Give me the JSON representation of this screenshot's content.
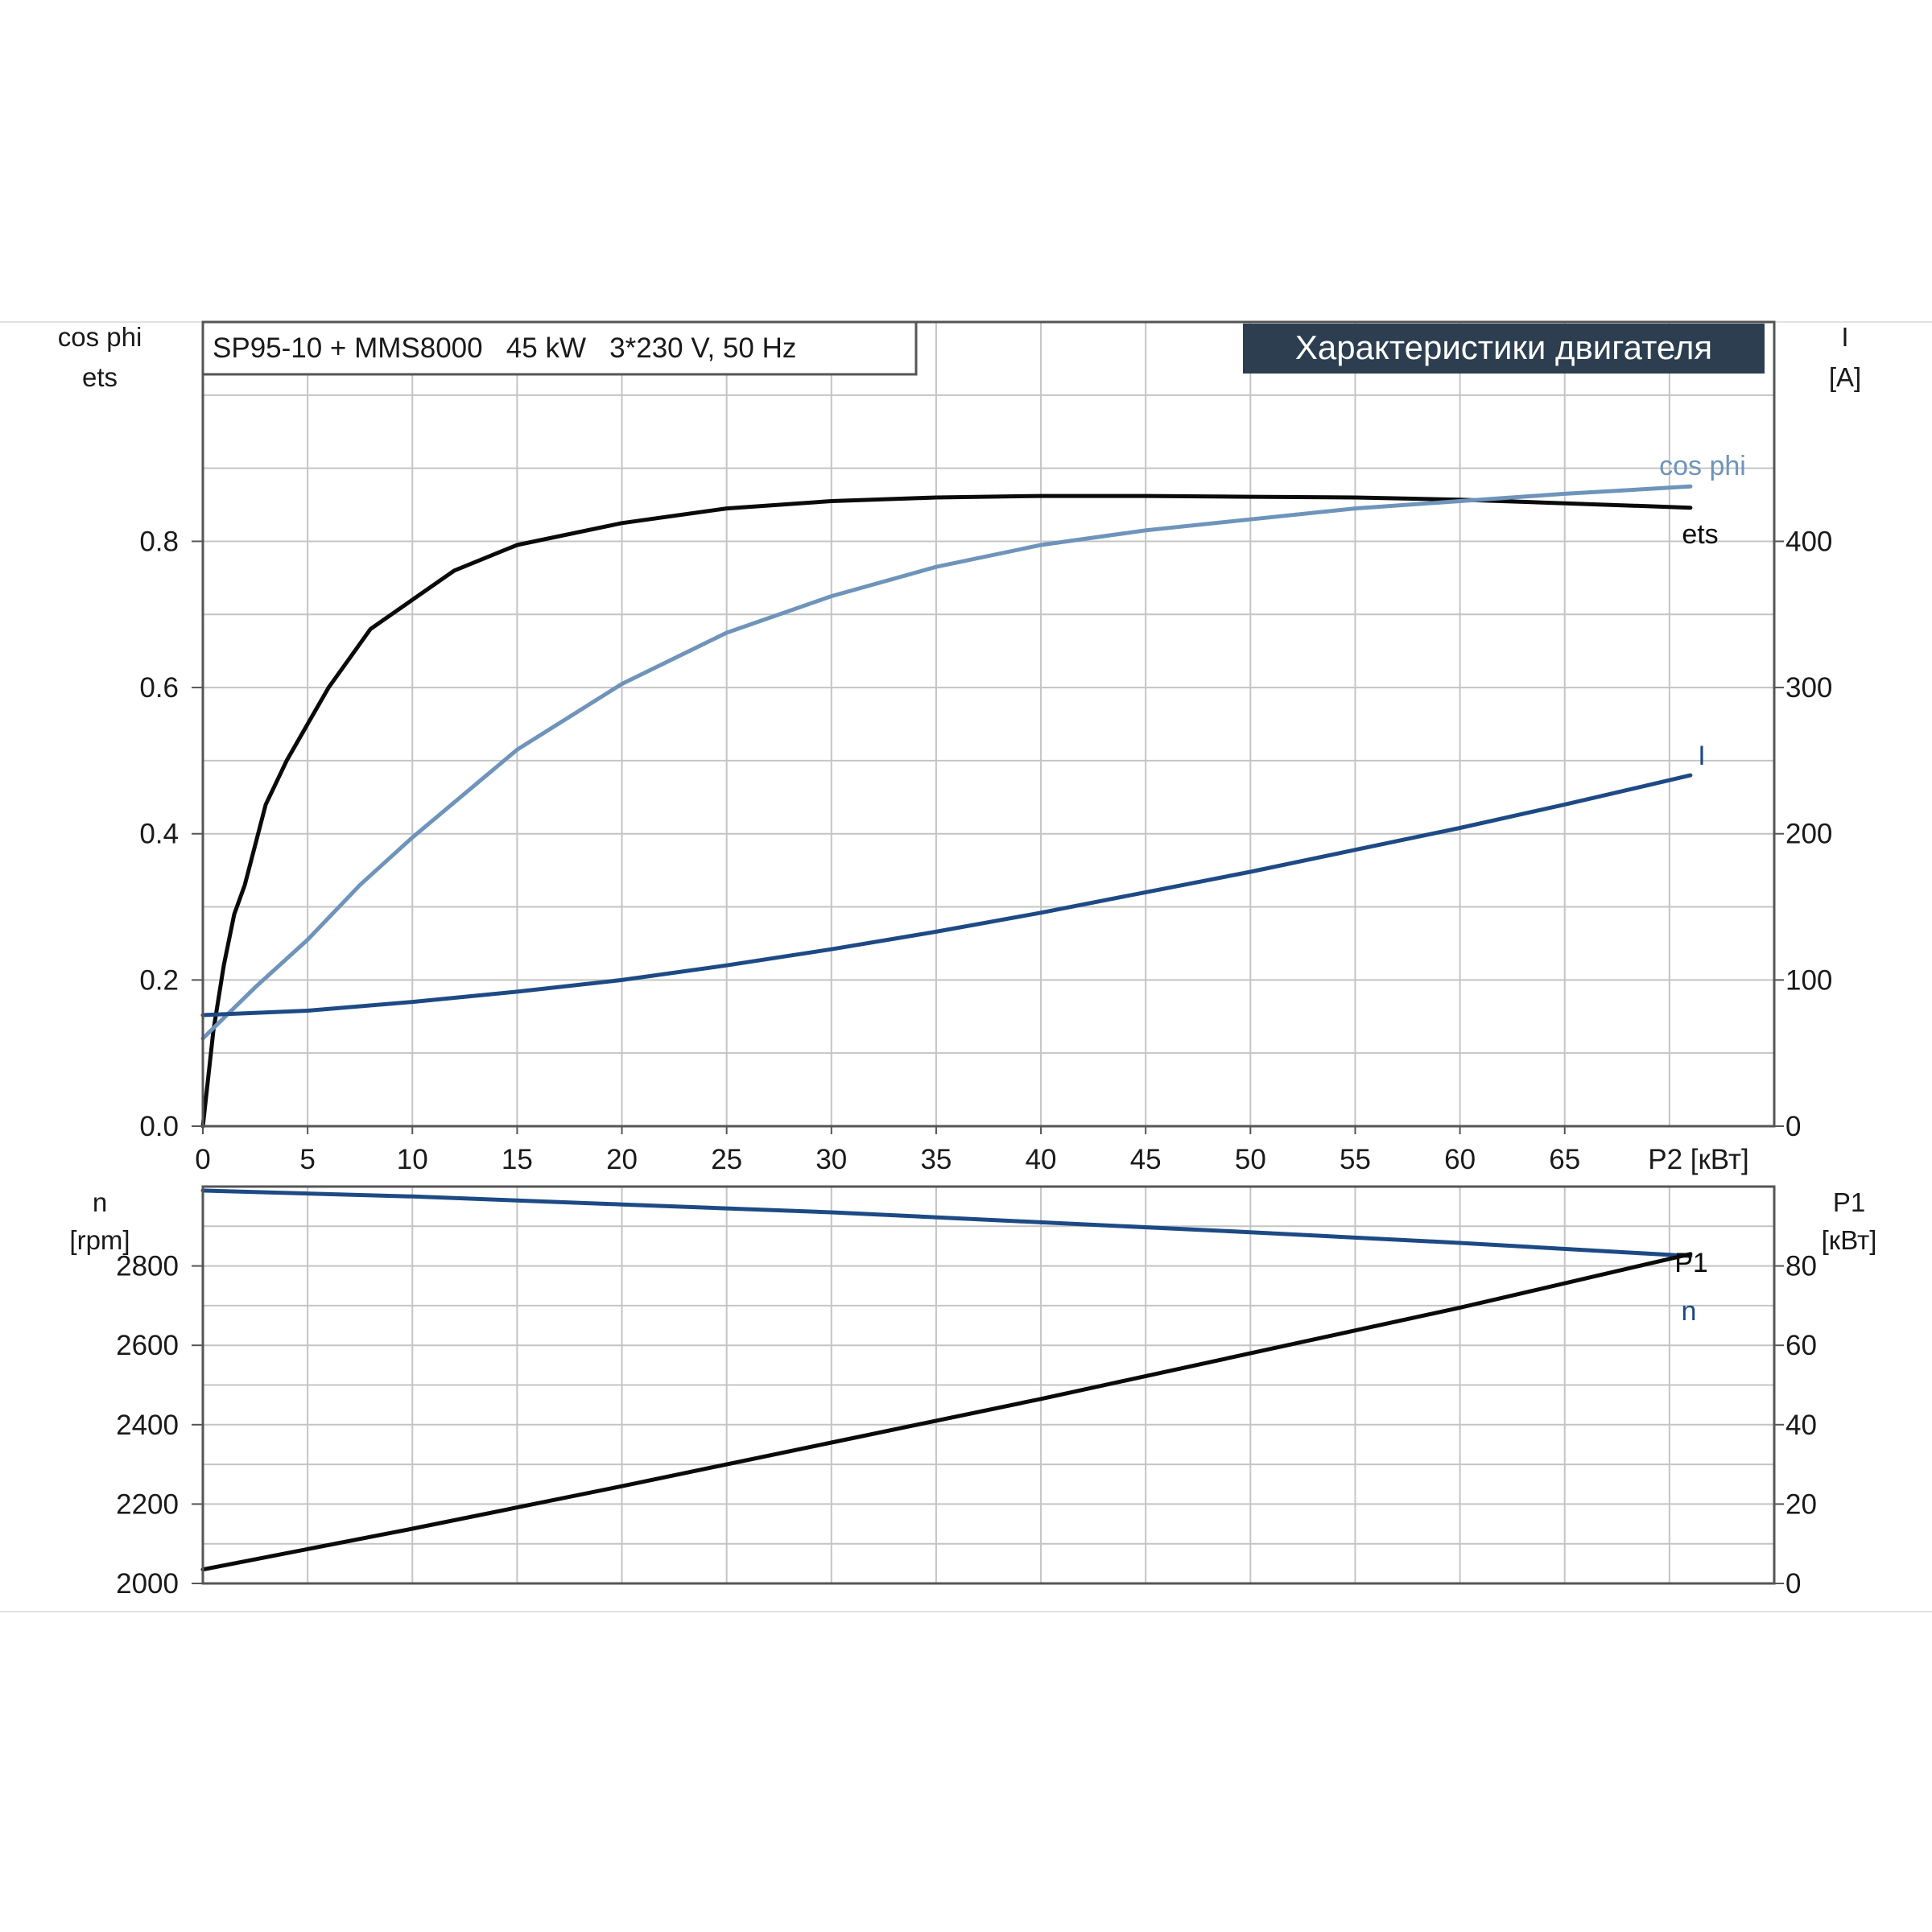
{
  "header": {
    "model_label": "SP95-10 + MMS8000   45 kW   3*230 V, 50 Hz",
    "banner_title": "Характеристики двигателя",
    "banner_bg": "#2c3e50",
    "banner_fg": "#ffffff"
  },
  "chart_data": [
    {
      "type": "line",
      "x_axis": {
        "ticks": [
          "0",
          "5",
          "10",
          "15",
          "20",
          "25",
          "30",
          "35",
          "40",
          "45",
          "50",
          "55",
          "60",
          "65"
        ],
        "label": "P2 [кВт]",
        "range": [
          0,
          75
        ]
      },
      "y_left": {
        "label_lines": [
          "cos phi",
          "ets"
        ],
        "ticks": [
          "0.0",
          "0.2",
          "0.4",
          "0.6",
          "0.8"
        ],
        "range": [
          0,
          1.1
        ]
      },
      "y_right": {
        "label_lines": [
          "I",
          "[A]"
        ],
        "ticks": [
          "0",
          "100",
          "200",
          "300",
          "400"
        ],
        "range": [
          0,
          550
        ]
      },
      "grid": true,
      "series": [
        {
          "name": "ets",
          "axis": "left",
          "color": "#0a0a0a",
          "x": [
            0,
            0.5,
            1,
            1.5,
            2,
            3,
            4,
            5,
            6,
            7,
            8,
            10,
            12,
            15,
            20,
            25,
            30,
            35,
            40,
            45,
            50,
            55,
            60,
            65,
            71
          ],
          "y": [
            0.0,
            0.13,
            0.22,
            0.29,
            0.33,
            0.44,
            0.5,
            0.55,
            0.6,
            0.64,
            0.68,
            0.72,
            0.76,
            0.795,
            0.825,
            0.845,
            0.855,
            0.86,
            0.862,
            0.862,
            0.861,
            0.86,
            0.857,
            0.852,
            0.846
          ]
        },
        {
          "name": "cos phi",
          "axis": "left",
          "color": "#6f94bb",
          "x": [
            0,
            2.5,
            5,
            7.5,
            10,
            15,
            20,
            25,
            30,
            35,
            40,
            45,
            50,
            55,
            60,
            65,
            71
          ],
          "y": [
            0.12,
            0.19,
            0.255,
            0.33,
            0.395,
            0.515,
            0.605,
            0.675,
            0.725,
            0.765,
            0.795,
            0.815,
            0.83,
            0.845,
            0.855,
            0.865,
            0.875
          ]
        },
        {
          "name": "I",
          "axis": "right",
          "color": "#1d4a85",
          "x": [
            0,
            5,
            10,
            15,
            20,
            25,
            30,
            35,
            40,
            45,
            50,
            55,
            60,
            65,
            71
          ],
          "y": [
            76,
            79,
            85,
            92,
            100,
            110,
            121,
            133,
            146,
            160,
            174,
            189,
            204,
            220,
            240
          ]
        }
      ]
    },
    {
      "type": "line",
      "x_axis": {
        "range": [
          0,
          75
        ]
      },
      "y_left": {
        "label_lines": [
          "n",
          "[rpm]"
        ],
        "ticks": [
          "2000",
          "2200",
          "2400",
          "2600",
          "2800"
        ],
        "range": [
          2000,
          3000
        ]
      },
      "y_right": {
        "label_lines": [
          "P1",
          "[кВт]"
        ],
        "ticks": [
          "0",
          "20",
          "40",
          "60",
          "80"
        ],
        "range": [
          0,
          100
        ]
      },
      "grid": true,
      "series": [
        {
          "name": "n",
          "axis": "left",
          "color": "#1d4a85",
          "x": [
            0,
            10,
            20,
            30,
            40,
            50,
            60,
            71
          ],
          "y": [
            2990,
            2975,
            2955,
            2935,
            2910,
            2885,
            2858,
            2825
          ]
        },
        {
          "name": "P1",
          "axis": "right",
          "color": "#0a0a0a",
          "x": [
            0,
            10,
            20,
            30,
            40,
            50,
            60,
            71
          ],
          "y": [
            3.5,
            13.8,
            24.5,
            35.5,
            46.5,
            58.0,
            69.5,
            83.0
          ]
        }
      ]
    }
  ]
}
